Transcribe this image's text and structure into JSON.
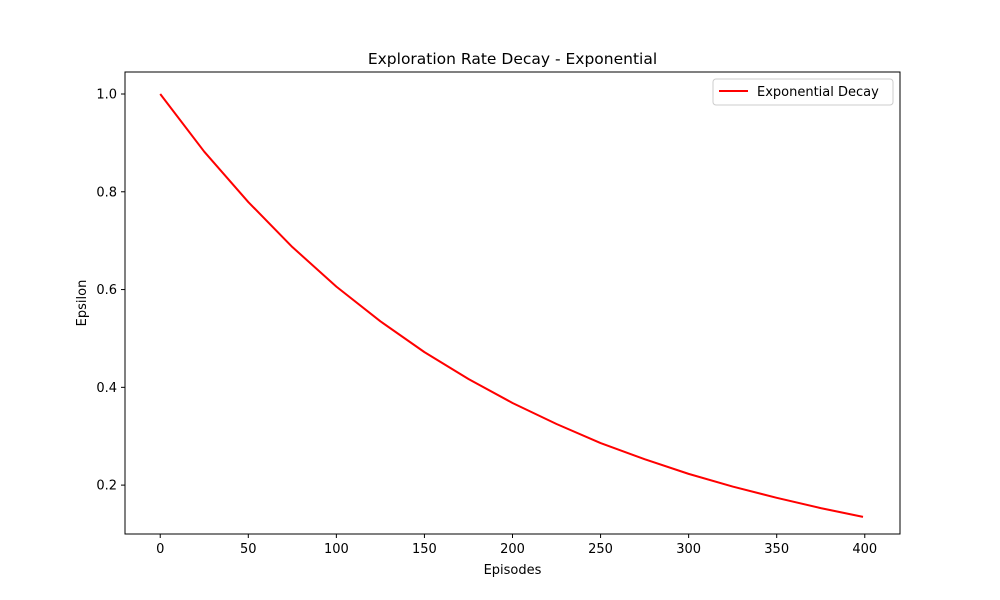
{
  "chart_data": {
    "type": "line",
    "title": "Exploration Rate Decay - Exponential",
    "xlabel": "Episodes",
    "ylabel": "Epsilon",
    "xlim": [
      -20,
      420
    ],
    "ylim": [
      0.1,
      1.045
    ],
    "x_ticks": [
      0,
      50,
      100,
      150,
      200,
      250,
      300,
      350,
      400
    ],
    "y_ticks": [
      0.2,
      0.4,
      0.6,
      0.8,
      1.0
    ],
    "y_tick_labels": [
      "0.2",
      "0.4",
      "0.6",
      "0.8",
      "1.0"
    ],
    "grid": false,
    "legend_position": "top-right",
    "series": [
      {
        "name": "Exponential Decay",
        "color": "#ff0000",
        "x": [
          0,
          25,
          50,
          75,
          100,
          125,
          150,
          175,
          200,
          225,
          250,
          275,
          300,
          325,
          350,
          375,
          399
        ],
        "y": [
          1.0,
          0.882,
          0.779,
          0.687,
          0.606,
          0.535,
          0.472,
          0.417,
          0.368,
          0.325,
          0.286,
          0.253,
          0.223,
          0.197,
          0.174,
          0.153,
          0.135
        ]
      }
    ]
  }
}
